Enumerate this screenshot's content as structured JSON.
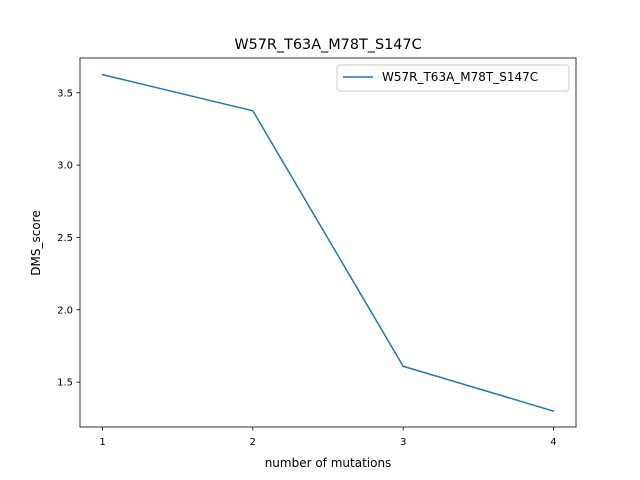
{
  "chart_data": {
    "type": "line",
    "title": "W57R_T63A_M78T_S147C",
    "xlabel": "number of mutations",
    "ylabel": "DMS_score",
    "x": [
      1,
      2,
      3,
      4
    ],
    "x_ticks": [
      1,
      2,
      3,
      4
    ],
    "x_tick_labels": [
      "1",
      "2",
      "3",
      "4"
    ],
    "xlim": [
      0.85,
      4.15
    ],
    "y_ticks": [
      1.5,
      2.0,
      2.5,
      3.0,
      3.5
    ],
    "y_tick_labels": [
      "1.5",
      "2.0",
      "2.5",
      "3.0",
      "3.5"
    ],
    "ylim": [
      1.19,
      3.74
    ],
    "series": [
      {
        "name": "W57R_T63A_M78T_S147C",
        "color": "#1f77b4",
        "values": [
          3.625,
          3.375,
          1.61,
          1.3
        ]
      }
    ],
    "legend_position": "top-right",
    "grid": false
  }
}
